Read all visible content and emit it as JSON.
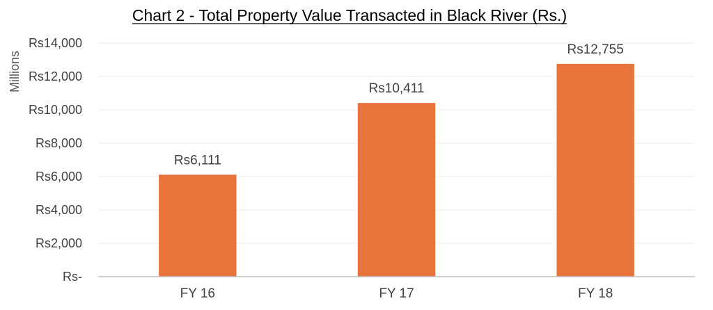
{
  "chart_data": {
    "type": "bar",
    "title": "Chart 2 - Total Property Value Transacted in Black River (Rs.)",
    "ylabel": "Millions",
    "xlabel": "",
    "categories": [
      "FY 16",
      "FY 17",
      "FY 18"
    ],
    "values": [
      6111,
      10411,
      12755
    ],
    "data_labels": [
      "Rs6,111",
      "Rs10,411",
      "Rs12,755"
    ],
    "ylim": [
      0,
      14000
    ],
    "yticks": [
      0,
      2000,
      4000,
      6000,
      8000,
      10000,
      12000,
      14000
    ],
    "ytick_labels": [
      "Rs-",
      "Rs2,000",
      "Rs4,000",
      "Rs6,000",
      "Rs8,000",
      "Rs10,000",
      "Rs12,000",
      "Rs14,000"
    ],
    "grid": true,
    "legend": "none",
    "bar_color": "#E8743B",
    "grid_color": "#EDEDED",
    "axis_color": "#BFBFBF"
  }
}
